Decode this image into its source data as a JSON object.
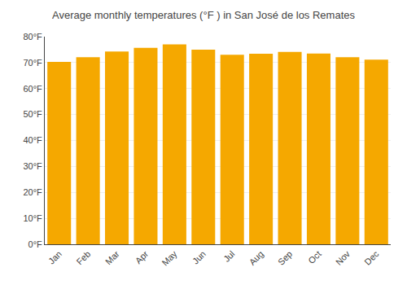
{
  "chart_data": {
    "type": "bar",
    "title": "Average monthly temperatures (°F ) in San José de los Remates",
    "categories": [
      "Jan",
      "Feb",
      "Mar",
      "Apr",
      "May",
      "Jun",
      "Jul",
      "Aug",
      "Sep",
      "Oct",
      "Nov",
      "Dec"
    ],
    "values": [
      70.3,
      72.1,
      74.3,
      75.7,
      77.0,
      75.0,
      73.0,
      73.4,
      74.1,
      73.5,
      72.1,
      71.1
    ],
    "color": "#F5A800",
    "ylim": [
      0,
      80
    ],
    "yticks": [
      {
        "value": 0,
        "label": "0°F"
      },
      {
        "value": 10,
        "label": "10°F"
      },
      {
        "value": 20,
        "label": "20°F"
      },
      {
        "value": 30,
        "label": "30°F"
      },
      {
        "value": 40,
        "label": "40°F"
      },
      {
        "value": 50,
        "label": "50°F"
      },
      {
        "value": 60,
        "label": "60°F"
      },
      {
        "value": 70,
        "label": "70°F"
      },
      {
        "value": 80,
        "label": "80°F"
      }
    ],
    "grid": true
  }
}
